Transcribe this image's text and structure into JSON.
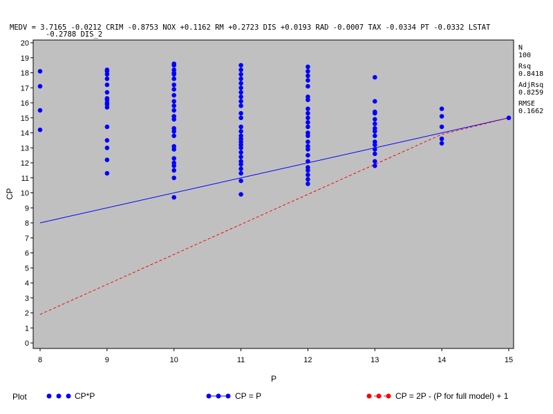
{
  "chart_data": {
    "type": "scatter",
    "equation_line1": "MEDV = 3.7165 -0.0212 CRIM -0.8753 NOX +0.1162 RM +0.2723 DIS +0.0193 RAD -0.0007 TAX -0.0334 PT -0.0332 LSTAT",
    "equation_line2": "-0.2788 DIS_2",
    "xlabel": "P",
    "ylabel": "CP",
    "xlim": [
      8,
      15
    ],
    "ylim": [
      0,
      20
    ],
    "x_ticks": [
      "8",
      "9",
      "10",
      "11",
      "12",
      "13",
      "14",
      "15"
    ],
    "y_ticks": [
      "0",
      "1",
      "2",
      "3",
      "4",
      "5",
      "6",
      "7",
      "8",
      "9",
      "10",
      "11",
      "12",
      "13",
      "14",
      "15",
      "16",
      "17",
      "18",
      "19",
      "20"
    ],
    "background": "#c0c0c0",
    "stats": [
      {
        "label": "N",
        "value": "100"
      },
      {
        "label": "Rsq",
        "value": "0.8418"
      },
      {
        "label": "AdjRsq",
        "value": "0.8259"
      },
      {
        "label": "RMSE",
        "value": "0.1662"
      }
    ],
    "series": [
      {
        "name": "CP*P",
        "style": "points",
        "color": "#0000ff",
        "points": [
          [
            8,
            14.2
          ],
          [
            8,
            15.5
          ],
          [
            8,
            17.1
          ],
          [
            8,
            18.1
          ],
          [
            9,
            11.3
          ],
          [
            9,
            12.2
          ],
          [
            9,
            13.0
          ],
          [
            9,
            13.5
          ],
          [
            9,
            14.4
          ],
          [
            9,
            15.7
          ],
          [
            9,
            15.9
          ],
          [
            9,
            16.0
          ],
          [
            9,
            16.2
          ],
          [
            9,
            16.3
          ],
          [
            9,
            16.7
          ],
          [
            9,
            17.2
          ],
          [
            9,
            17.6
          ],
          [
            9,
            17.9
          ],
          [
            9,
            18.1
          ],
          [
            9,
            18.2
          ],
          [
            10,
            9.7
          ],
          [
            10,
            11.0
          ],
          [
            10,
            11.5
          ],
          [
            10,
            11.8
          ],
          [
            10,
            12.0
          ],
          [
            10,
            12.3
          ],
          [
            10,
            12.9
          ],
          [
            10,
            13.1
          ],
          [
            10,
            13.8
          ],
          [
            10,
            14.1
          ],
          [
            10,
            14.3
          ],
          [
            10,
            14.9
          ],
          [
            10,
            15.1
          ],
          [
            10,
            15.5
          ],
          [
            10,
            15.8
          ],
          [
            10,
            16.1
          ],
          [
            10,
            16.5
          ],
          [
            10,
            16.9
          ],
          [
            10,
            17.2
          ],
          [
            10,
            17.6
          ],
          [
            10,
            17.9
          ],
          [
            10,
            18.0
          ],
          [
            10,
            18.2
          ],
          [
            10,
            18.5
          ],
          [
            10,
            18.6
          ],
          [
            11,
            9.9
          ],
          [
            11,
            10.8
          ],
          [
            11,
            11.3
          ],
          [
            11,
            11.6
          ],
          [
            11,
            11.9
          ],
          [
            11,
            12.1
          ],
          [
            11,
            12.4
          ],
          [
            11,
            12.7
          ],
          [
            11,
            13.0
          ],
          [
            11,
            13.2
          ],
          [
            11,
            13.4
          ],
          [
            11,
            13.6
          ],
          [
            11,
            13.8
          ],
          [
            11,
            14.1
          ],
          [
            11,
            14.4
          ],
          [
            11,
            15.0
          ],
          [
            11,
            15.3
          ],
          [
            11,
            15.8
          ],
          [
            11,
            16.1
          ],
          [
            11,
            16.4
          ],
          [
            11,
            16.7
          ],
          [
            11,
            17.0
          ],
          [
            11,
            17.3
          ],
          [
            11,
            17.6
          ],
          [
            11,
            17.9
          ],
          [
            11,
            18.2
          ],
          [
            11,
            18.5
          ],
          [
            12,
            10.6
          ],
          [
            12,
            10.9
          ],
          [
            12,
            11.2
          ],
          [
            12,
            11.5
          ],
          [
            12,
            11.7
          ],
          [
            12,
            12.1
          ],
          [
            12,
            12.5
          ],
          [
            12,
            12.9
          ],
          [
            12,
            13.1
          ],
          [
            12,
            13.4
          ],
          [
            12,
            13.8
          ],
          [
            12,
            14.0
          ],
          [
            12,
            14.4
          ],
          [
            12,
            14.7
          ],
          [
            12,
            15.0
          ],
          [
            12,
            15.3
          ],
          [
            12,
            15.6
          ],
          [
            12,
            16.2
          ],
          [
            12,
            16.4
          ],
          [
            12,
            17.1
          ],
          [
            12,
            17.5
          ],
          [
            12,
            17.8
          ],
          [
            12,
            18.1
          ],
          [
            12,
            18.4
          ],
          [
            13,
            11.8
          ],
          [
            13,
            12.1
          ],
          [
            13,
            12.6
          ],
          [
            13,
            12.9
          ],
          [
            13,
            13.2
          ],
          [
            13,
            13.4
          ],
          [
            13,
            13.8
          ],
          [
            13,
            14.1
          ],
          [
            13,
            14.3
          ],
          [
            13,
            14.6
          ],
          [
            13,
            14.9
          ],
          [
            13,
            15.3
          ],
          [
            13,
            15.4
          ],
          [
            13,
            16.1
          ],
          [
            13,
            17.7
          ],
          [
            14,
            13.3
          ],
          [
            14,
            13.6
          ],
          [
            14,
            14.4
          ],
          [
            14,
            15.1
          ],
          [
            14,
            15.6
          ],
          [
            15,
            15.0
          ]
        ]
      },
      {
        "name": "CP = P",
        "style": "line",
        "color": "#0000ff",
        "points": [
          [
            8,
            8
          ],
          [
            15,
            15
          ]
        ]
      },
      {
        "name": "CP = 2P - (P for full model) + 1",
        "style": "dashed",
        "color": "#ff0000",
        "points": [
          [
            8,
            1.9
          ],
          [
            9,
            3.9
          ],
          [
            10,
            5.9
          ],
          [
            11,
            7.9
          ],
          [
            12,
            9.9
          ],
          [
            13,
            11.9
          ],
          [
            14,
            13.9
          ],
          [
            15,
            15.0
          ]
        ]
      }
    ],
    "legend": {
      "title": "Plot",
      "position": "bottom",
      "items": [
        "CP*P",
        "CP = P",
        "CP = 2P - (P for full model) + 1"
      ]
    }
  }
}
